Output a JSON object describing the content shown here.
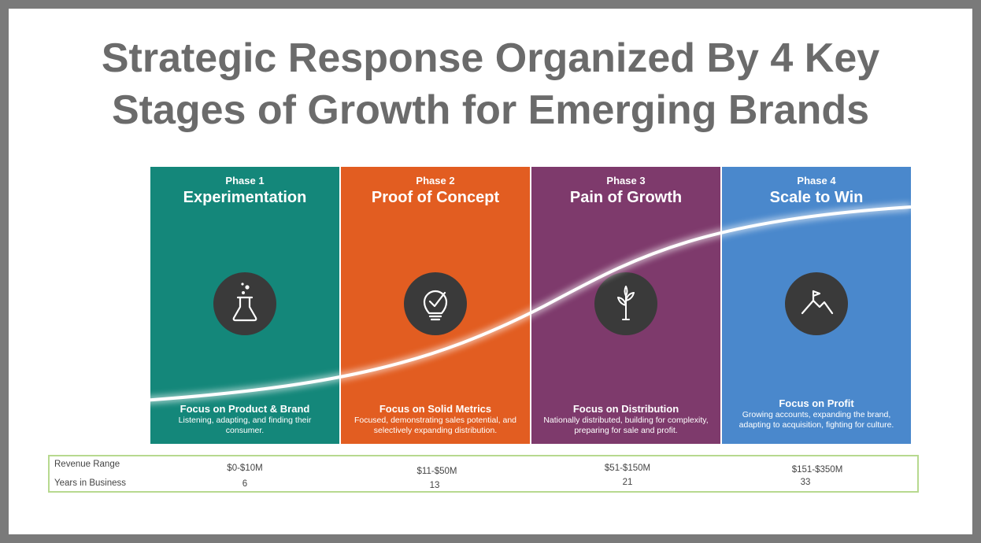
{
  "title": {
    "line1": "Strategic Response Organized By 4 Key",
    "line2": "Stages of Growth for Emerging Brands"
  },
  "phases": [
    {
      "phase": "Phase 1",
      "name": "Experimentation",
      "icon": "flask-icon",
      "color": "#14877a",
      "focus": "Focus on Product & Brand",
      "desc": "Listening, adapting, and finding their consumer."
    },
    {
      "phase": "Phase 2",
      "name": "Proof of Concept",
      "icon": "lightbulb-check-icon",
      "color": "#e25d21",
      "focus": "Focus on Solid Metrics",
      "desc": "Focused, demonstrating sales potential, and selectively expanding distribution."
    },
    {
      "phase": "Phase 3",
      "name": "Pain of Growth",
      "icon": "sprout-icon",
      "color": "#7e3a6c",
      "focus": "Focus on Distribution",
      "desc": "Nationally distributed, building for complexity, preparing for sale and profit."
    },
    {
      "phase": "Phase 4",
      "name": "Scale to Win",
      "icon": "mountain-flag-icon",
      "color": "#4a88cc",
      "focus": "Focus on Profit",
      "desc": "Growing accounts, expanding the brand, adapting to acquisition, fighting for culture."
    }
  ],
  "table": {
    "revenue_label": "Revenue Range",
    "years_label": "Years in Business",
    "revenue": [
      "$0-$10M",
      "$11-$50M",
      "$51-$150M",
      "$151-$350M"
    ],
    "years": [
      "6",
      "13",
      "21",
      "33"
    ]
  }
}
